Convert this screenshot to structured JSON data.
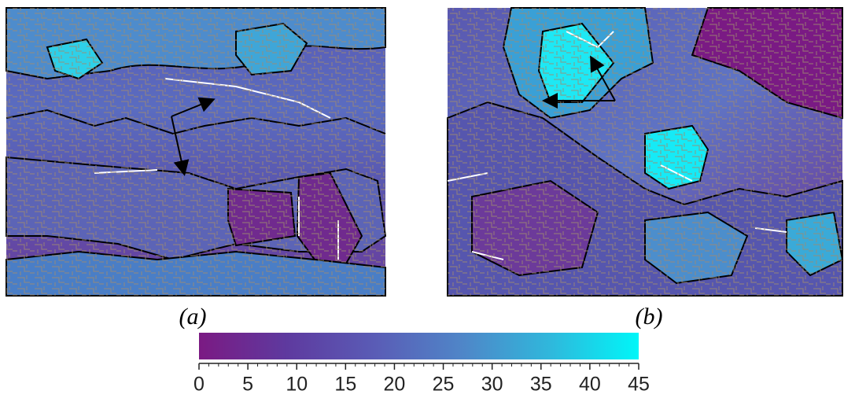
{
  "panels": [
    {
      "label": "(a)"
    },
    {
      "label": "(b)"
    }
  ],
  "colorbar": {
    "lim": [
      0,
      45
    ],
    "ticks": [
      0,
      5,
      10,
      15,
      20,
      25,
      30,
      35,
      40,
      45
    ],
    "minor_ticks": [
      1,
      2,
      3,
      4,
      6,
      7,
      8,
      9,
      11,
      12,
      13,
      14,
      16,
      17,
      18,
      19,
      21,
      22,
      23,
      24,
      26,
      27,
      28,
      29,
      31,
      32,
      33,
      34,
      36,
      37,
      38,
      39,
      41,
      42,
      43,
      44
    ],
    "colors": [
      "#7b1a83",
      "#5e3a9f",
      "#5a5cb6",
      "#4f86c8",
      "#2fb8dc",
      "#00f6f8"
    ]
  }
}
